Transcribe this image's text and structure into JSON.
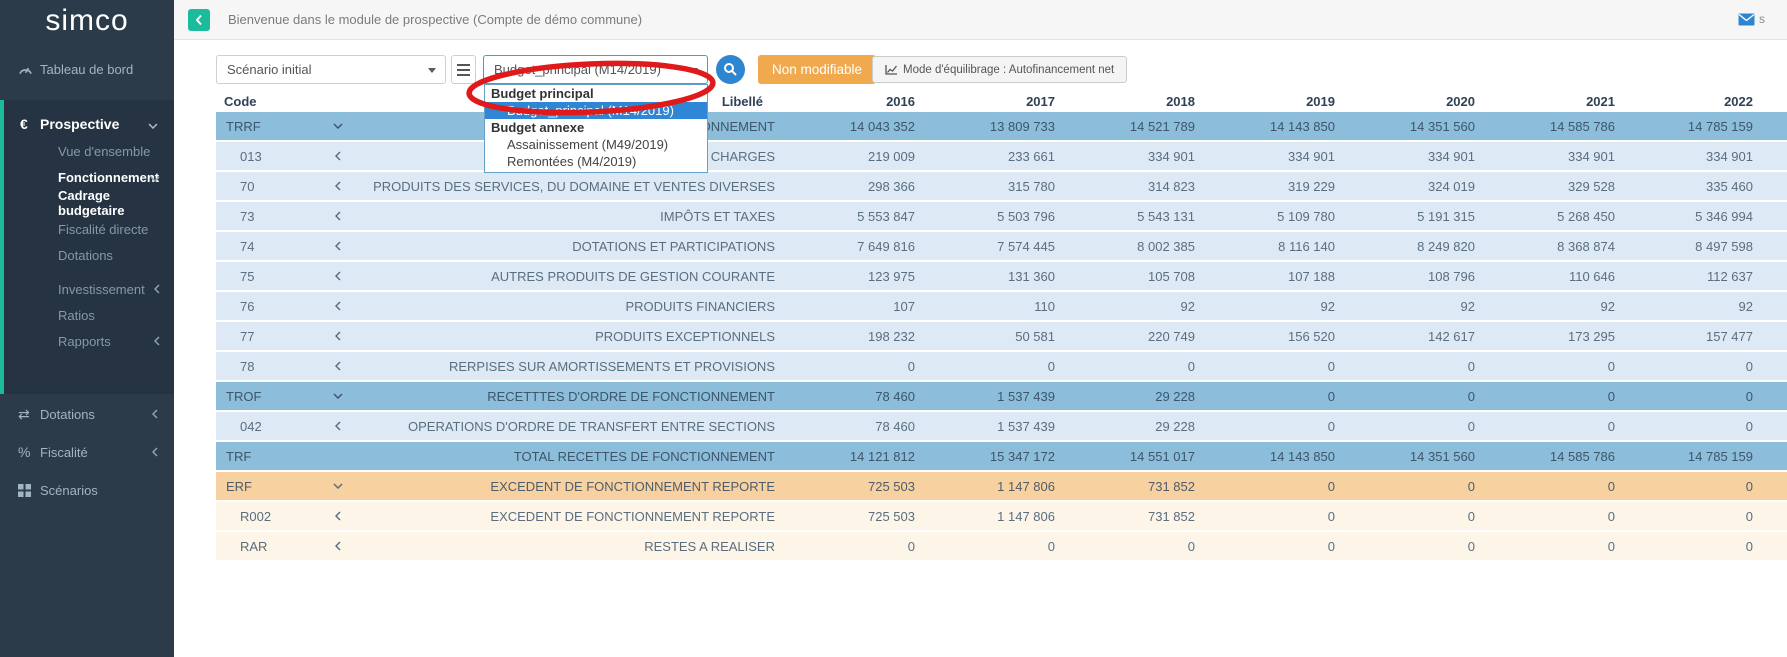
{
  "brand": {
    "logo_text": "simco"
  },
  "header": {
    "title": "Bienvenue dans le module de prospective (Compte de démo commune)",
    "mail_user_hint": "s"
  },
  "sidebar": {
    "dashboard_label": "Tableau de bord",
    "prospective_label": "Prospective",
    "prospective_children": [
      {
        "label": "Vue d'ensemble",
        "chevron": "none",
        "active": false,
        "gap": false
      },
      {
        "label": "Fonctionnement",
        "chevron": "down",
        "active": true,
        "gap": false
      },
      {
        "label": "Cadrage budgetaire",
        "chevron": "none",
        "active": true,
        "gap": false
      },
      {
        "label": "Fiscalité directe",
        "chevron": "none",
        "active": false,
        "gap": false
      },
      {
        "label": "Dotations",
        "chevron": "none",
        "active": false,
        "gap": false
      },
      {
        "label": "Investissement",
        "chevron": "left",
        "active": false,
        "gap": true
      },
      {
        "label": "Ratios",
        "chevron": "none",
        "active": false,
        "gap": false
      },
      {
        "label": "Rapports",
        "chevron": "left",
        "active": false,
        "gap": false
      }
    ],
    "bottom_items": [
      {
        "label": "Dotations",
        "icon": "transfer-icon",
        "glyph": "⇄",
        "chevron": "left"
      },
      {
        "label": "Fiscalité",
        "icon": "percent-icon",
        "glyph": "%",
        "chevron": "left"
      },
      {
        "label": "Scénarios",
        "icon": "grid-icon",
        "glyph": "grid",
        "chevron": "none"
      }
    ]
  },
  "toolbar": {
    "scenario_select_value": "Scénario initial",
    "budget_select_value": "Budget_principal (M14/2019)",
    "non_modifiable_label": "Non modifiable",
    "equilibrage_label": "Mode d'équilibrage : Autofinancement net"
  },
  "budget_dropdown": {
    "groups": [
      {
        "label": "Budget principal",
        "options": [
          {
            "label": "Budget_principal (M14/2019)",
            "selected": true
          }
        ]
      },
      {
        "label": "Budget annexe",
        "options": [
          {
            "label": "Assainissement (M49/2019)",
            "selected": false
          },
          {
            "label": "Remontées (M4/2019)",
            "selected": false
          }
        ]
      }
    ]
  },
  "table": {
    "columns": [
      "Code",
      "",
      "Libellé",
      "2016",
      "2017",
      "2018",
      "2019",
      "2020",
      "2021",
      "2022"
    ],
    "rows": [
      {
        "code": "TRRF",
        "chevron": "down",
        "style": "group-blue",
        "label": "RECETTES REELLES DE FONCTIONNEMENT",
        "values": [
          "14 043 352",
          "13 809 733",
          "14 521 789",
          "14 143 850",
          "14 351 560",
          "14 585 786",
          "14 785 159"
        ]
      },
      {
        "code": "013",
        "chevron": "left",
        "style": "child-blue",
        "label": "ATTENUATIONS DE CHARGES",
        "values": [
          "219 009",
          "233 661",
          "334 901",
          "334 901",
          "334 901",
          "334 901",
          "334 901"
        ]
      },
      {
        "code": "70",
        "chevron": "left",
        "style": "child-blue",
        "label": "PRODUITS DES SERVICES, DU DOMAINE ET VENTES DIVERSES",
        "values": [
          "298 366",
          "315 780",
          "314 823",
          "319 229",
          "324 019",
          "329 528",
          "335 460"
        ]
      },
      {
        "code": "73",
        "chevron": "left",
        "style": "child-blue",
        "label": "IMPÔTS ET TAXES",
        "values": [
          "5 553 847",
          "5 503 796",
          "5 543 131",
          "5 109 780",
          "5 191 315",
          "5 268 450",
          "5 346 994"
        ]
      },
      {
        "code": "74",
        "chevron": "left",
        "style": "child-blue",
        "label": "DOTATIONS ET PARTICIPATIONS",
        "values": [
          "7 649 816",
          "7 574 445",
          "8 002 385",
          "8 116 140",
          "8 249 820",
          "8 368 874",
          "8 497 598"
        ]
      },
      {
        "code": "75",
        "chevron": "left",
        "style": "child-blue",
        "label": "AUTRES PRODUITS DE GESTION COURANTE",
        "values": [
          "123 975",
          "131 360",
          "105 708",
          "107 188",
          "108 796",
          "110 646",
          "112 637"
        ]
      },
      {
        "code": "76",
        "chevron": "left",
        "style": "child-blue",
        "label": "PRODUITS FINANCIERS",
        "values": [
          "107",
          "110",
          "92",
          "92",
          "92",
          "92",
          "92"
        ]
      },
      {
        "code": "77",
        "chevron": "left",
        "style": "child-blue",
        "label": "PRODUITS EXCEPTIONNELS",
        "values": [
          "198 232",
          "50 581",
          "220 749",
          "156 520",
          "142 617",
          "173 295",
          "157 477"
        ]
      },
      {
        "code": "78",
        "chevron": "left",
        "style": "child-blue",
        "label": "RERPISES SUR AMORTISSEMENTS ET PROVISIONS",
        "values": [
          "0",
          "0",
          "0",
          "0",
          "0",
          "0",
          "0"
        ]
      },
      {
        "code": "TROF",
        "chevron": "down",
        "style": "group-blue",
        "label": "RECETTTES D'ORDRE DE FONCTIONNEMENT",
        "values": [
          "78 460",
          "1 537 439",
          "29 228",
          "0",
          "0",
          "0",
          "0"
        ]
      },
      {
        "code": "042",
        "chevron": "left",
        "style": "child-blue",
        "label": "OPERATIONS D'ORDRE DE TRANSFERT ENTRE SECTIONS",
        "values": [
          "78 460",
          "1 537 439",
          "29 228",
          "0",
          "0",
          "0",
          "0"
        ]
      },
      {
        "code": "TRF",
        "chevron": "none",
        "style": "group-blue",
        "label": "TOTAL RECETTES DE FONCTIONNEMENT",
        "values": [
          "14 121 812",
          "15 347 172",
          "14 551 017",
          "14 143 850",
          "14 351 560",
          "14 585 786",
          "14 785 159"
        ]
      },
      {
        "code": "ERF",
        "chevron": "down",
        "style": "group-orange",
        "label": "EXCEDENT DE FONCTIONNEMENT REPORTE",
        "values": [
          "725 503",
          "1 147 806",
          "731 852",
          "0",
          "0",
          "0",
          "0"
        ]
      },
      {
        "code": "R002",
        "chevron": "left",
        "style": "child-cream",
        "label": "EXCEDENT DE FONCTIONNEMENT REPORTE",
        "values": [
          "725 503",
          "1 147 806",
          "731 852",
          "0",
          "0",
          "0",
          "0"
        ]
      },
      {
        "code": "RAR",
        "chevron": "left",
        "style": "child-cream",
        "label": "RESTES A REALISER",
        "values": [
          "0",
          "0",
          "0",
          "0",
          "0",
          "0",
          "0"
        ]
      }
    ]
  },
  "colors": {
    "accent_green": "#1abc9c",
    "sidebar_bg": "#2c3b4a",
    "group_row_blue": "#8cbdda",
    "child_row_blue": "#ddeaf5",
    "group_row_orange": "#f8d1a0",
    "child_row_cream": "#fdf5e7",
    "warning_orange": "#f0a94c",
    "search_blue": "#2e86d1",
    "selected_option_blue": "#2f86d4",
    "annotation_red": "#e01a1a"
  }
}
